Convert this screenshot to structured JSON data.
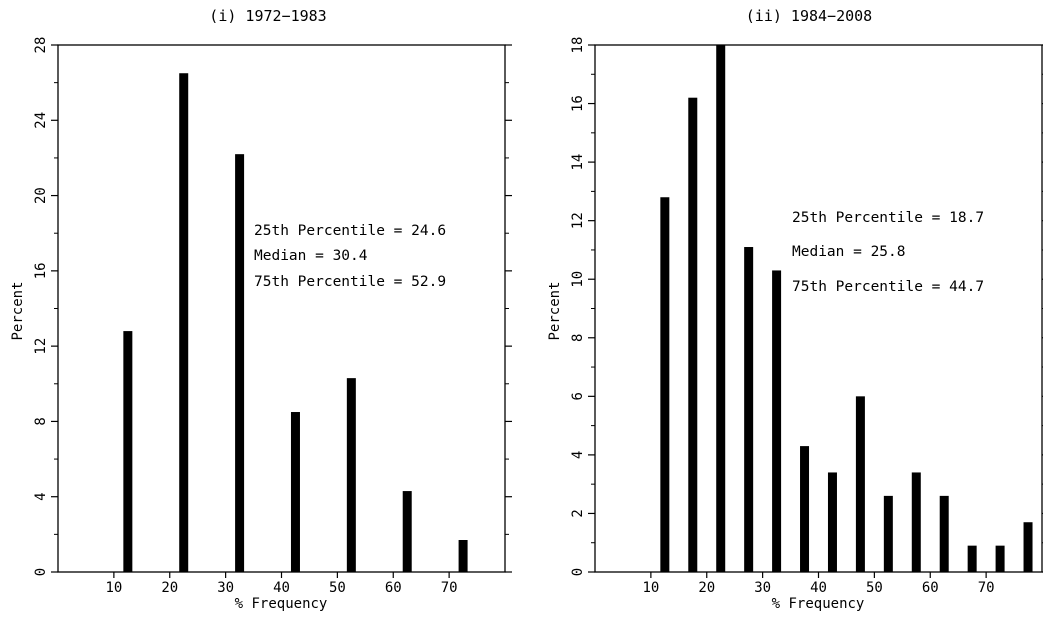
{
  "chart_data": [
    {
      "type": "bar",
      "title": "(i) 1972−1983",
      "xlabel": "% Frequency",
      "ylabel": "Percent",
      "xlim": [
        0,
        80
      ],
      "ylim": [
        0,
        28
      ],
      "x_ticks": [
        10,
        20,
        30,
        40,
        50,
        60,
        70
      ],
      "y_ticks": [
        0,
        4,
        8,
        12,
        16,
        20,
        24,
        28
      ],
      "x": [
        12.5,
        22.5,
        32.5,
        42.5,
        52.5,
        62.5,
        72.5
      ],
      "values": [
        12.8,
        26.5,
        22.2,
        8.5,
        10.3,
        4.3,
        1.7
      ],
      "annotations": [
        "25th Percentile = 24.6",
        "Median = 30.4",
        "75th Percentile = 52.9"
      ],
      "grid": false,
      "bar_color": "#000000"
    },
    {
      "type": "bar",
      "title": "(ii) 1984−2008",
      "xlabel": "% Frequency",
      "ylabel": "Percent",
      "xlim": [
        0,
        80
      ],
      "ylim": [
        0,
        18
      ],
      "x_ticks": [
        10,
        20,
        30,
        40,
        50,
        60,
        70
      ],
      "y_ticks": [
        0,
        2,
        4,
        6,
        8,
        10,
        12,
        14,
        16,
        18
      ],
      "x": [
        12.5,
        17.5,
        22.5,
        27.5,
        32.5,
        37.5,
        42.5,
        47.5,
        52.5,
        57.5,
        62.5,
        67.5,
        72.5,
        77.5
      ],
      "values": [
        12.8,
        16.2,
        18.0,
        11.1,
        10.3,
        4.3,
        3.4,
        6.0,
        2.6,
        3.4,
        2.6,
        0.9,
        0.9,
        1.7
      ],
      "annotations": [
        "25th Percentile = 18.7",
        "Median = 25.8",
        "75th Percentile = 44.7"
      ],
      "grid": false,
      "bar_color": "#000000"
    }
  ]
}
